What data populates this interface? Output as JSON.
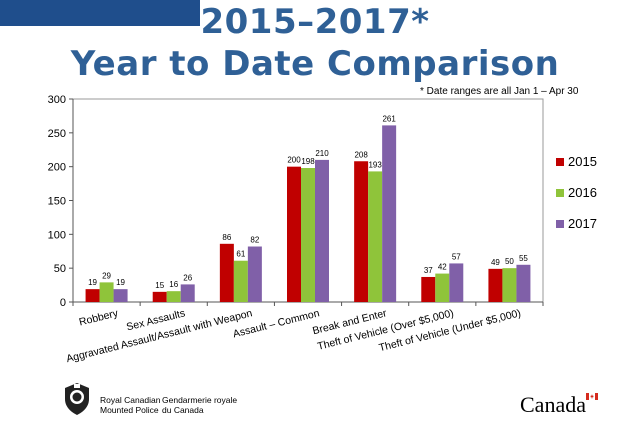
{
  "header": {
    "title_line1": "2015–2017*",
    "title_line2": "Year to Date Comparison",
    "note": "* Date ranges are all Jan 1 – Apr 30"
  },
  "footer": {
    "org_en_line1": "Royal Canadian",
    "org_en_line2": "Mounted Police",
    "org_fr_line1": "Gendarmerie royale",
    "org_fr_line2": "du Canada",
    "wordmark": "Canada",
    "crest_icon": "rcmp-crest-icon",
    "flag_icon": "canada-flag-icon"
  },
  "chart_data": {
    "type": "bar",
    "title": "2015–2017* Year to Date Comparison",
    "categories": [
      "Robbery",
      "Sex Assaults",
      "Aggravated Assault/Assault with Weapon",
      "Assault – Common",
      "Break and Enter",
      "Theft of Vehicle (Over $5,000)",
      "Theft of Vehicle (Under $5,000)"
    ],
    "series": [
      {
        "name": "2015",
        "color": "#c00000",
        "values": [
          19,
          15,
          86,
          200,
          208,
          37,
          49
        ]
      },
      {
        "name": "2016",
        "color": "#8fc43a",
        "values": [
          29,
          16,
          61,
          198,
          193,
          42,
          50
        ]
      },
      {
        "name": "2017",
        "color": "#8060a8",
        "values": [
          19,
          26,
          82,
          210,
          261,
          57,
          55
        ]
      }
    ],
    "ylim": [
      0,
      300
    ],
    "yticks": [
      0,
      50,
      100,
      150,
      200,
      250,
      300
    ],
    "grid": false,
    "legend": "right",
    "data_labels": true
  }
}
